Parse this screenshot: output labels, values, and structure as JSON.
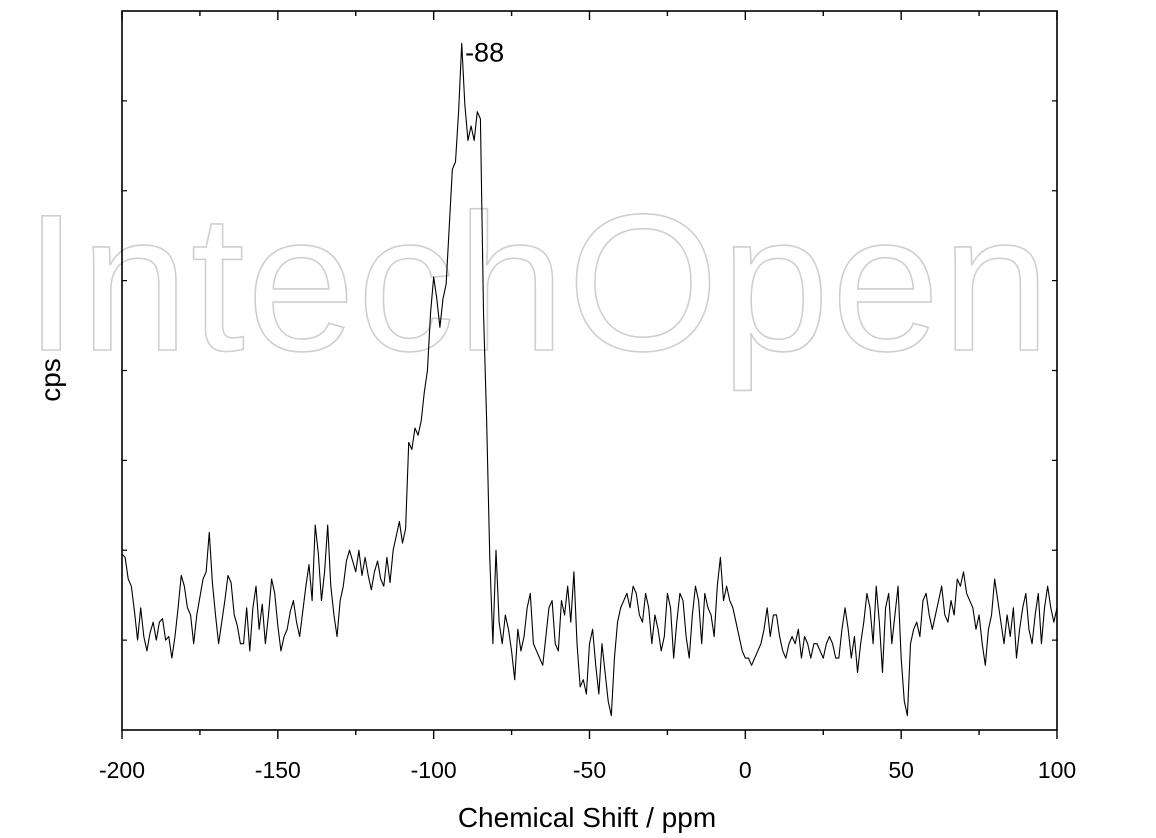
{
  "watermark": "IntechOpen",
  "chart_data": {
    "type": "line",
    "title": "",
    "xlabel": "Chemical Shift / ppm",
    "ylabel": "cps",
    "xlim": [
      -200,
      100
    ],
    "ylim": [
      0,
      1
    ],
    "x_ticks": [
      -200,
      -150,
      -100,
      -50,
      0,
      50,
      100
    ],
    "x_tick_labels": [
      "-200",
      "-150",
      "-100",
      "-50",
      "0",
      "50",
      "100"
    ],
    "grid": false,
    "legend": "none",
    "y_tick_labels_shown": false,
    "annotations": [
      {
        "text": "-88",
        "x": -88,
        "y": 0.955
      }
    ],
    "series": [
      {
        "color": "#000000",
        "points": [
          [
            -200,
            0.245
          ],
          [
            -199,
            0.24
          ],
          [
            -198,
            0.21
          ],
          [
            -197,
            0.2
          ],
          [
            -196,
            0.165
          ],
          [
            -195,
            0.125
          ],
          [
            -194,
            0.17
          ],
          [
            -193,
            0.13
          ],
          [
            -192,
            0.11
          ],
          [
            -191,
            0.135
          ],
          [
            -190,
            0.15
          ],
          [
            -189,
            0.125
          ],
          [
            -188,
            0.15
          ],
          [
            -187,
            0.155
          ],
          [
            -186,
            0.125
          ],
          [
            -185,
            0.13
          ],
          [
            -184,
            0.1
          ],
          [
            -183,
            0.13
          ],
          [
            -182,
            0.17
          ],
          [
            -181,
            0.215
          ],
          [
            -180,
            0.2
          ],
          [
            -179,
            0.17
          ],
          [
            -178,
            0.16
          ],
          [
            -177,
            0.12
          ],
          [
            -176,
            0.16
          ],
          [
            -175,
            0.185
          ],
          [
            -174,
            0.21
          ],
          [
            -173,
            0.22
          ],
          [
            -172,
            0.275
          ],
          [
            -171,
            0.205
          ],
          [
            -170,
            0.16
          ],
          [
            -169,
            0.12
          ],
          [
            -168,
            0.15
          ],
          [
            -167,
            0.18
          ],
          [
            -166,
            0.215
          ],
          [
            -165,
            0.205
          ],
          [
            -164,
            0.16
          ],
          [
            -163,
            0.145
          ],
          [
            -162,
            0.12
          ],
          [
            -161,
            0.12
          ],
          [
            -160,
            0.17
          ],
          [
            -159,
            0.11
          ],
          [
            -158,
            0.17
          ],
          [
            -157,
            0.2
          ],
          [
            -156,
            0.14
          ],
          [
            -155,
            0.175
          ],
          [
            -154,
            0.12
          ],
          [
            -153,
            0.16
          ],
          [
            -152,
            0.21
          ],
          [
            -151,
            0.19
          ],
          [
            -150,
            0.145
          ],
          [
            -149,
            0.11
          ],
          [
            -148,
            0.13
          ],
          [
            -147,
            0.14
          ],
          [
            -146,
            0.165
          ],
          [
            -145,
            0.18
          ],
          [
            -144,
            0.15
          ],
          [
            -143,
            0.13
          ],
          [
            -142,
            0.165
          ],
          [
            -141,
            0.2
          ],
          [
            -140,
            0.23
          ],
          [
            -139,
            0.18
          ],
          [
            -138,
            0.285
          ],
          [
            -137,
            0.245
          ],
          [
            -136,
            0.18
          ],
          [
            -135,
            0.22
          ],
          [
            -134,
            0.285
          ],
          [
            -133,
            0.2
          ],
          [
            -132,
            0.16
          ],
          [
            -131,
            0.13
          ],
          [
            -130,
            0.18
          ],
          [
            -129,
            0.2
          ],
          [
            -128,
            0.235
          ],
          [
            -127,
            0.25
          ],
          [
            -126,
            0.235
          ],
          [
            -125,
            0.22
          ],
          [
            -124,
            0.25
          ],
          [
            -123,
            0.215
          ],
          [
            -122,
            0.24
          ],
          [
            -121,
            0.215
          ],
          [
            -120,
            0.195
          ],
          [
            -119,
            0.22
          ],
          [
            -118,
            0.235
          ],
          [
            -117,
            0.21
          ],
          [
            -116,
            0.2
          ],
          [
            -115,
            0.24
          ],
          [
            -114,
            0.205
          ],
          [
            -113,
            0.25
          ],
          [
            -112,
            0.27
          ],
          [
            -111,
            0.29
          ],
          [
            -110,
            0.26
          ],
          [
            -109,
            0.28
          ],
          [
            -108,
            0.4
          ],
          [
            -107,
            0.39
          ],
          [
            -106,
            0.42
          ],
          [
            -105,
            0.41
          ],
          [
            -104,
            0.43
          ],
          [
            -103,
            0.47
          ],
          [
            -102,
            0.5
          ],
          [
            -101,
            0.58
          ],
          [
            -100,
            0.63
          ],
          [
            -99,
            0.6
          ],
          [
            -98,
            0.56
          ],
          [
            -97,
            0.6
          ],
          [
            -96,
            0.62
          ],
          [
            -95,
            0.7
          ],
          [
            -94,
            0.78
          ],
          [
            -93,
            0.79
          ],
          [
            -92,
            0.86
          ],
          [
            -91,
            0.955
          ],
          [
            -90,
            0.87
          ],
          [
            -89,
            0.82
          ],
          [
            -88,
            0.84
          ],
          [
            -87,
            0.82
          ],
          [
            -86,
            0.86
          ],
          [
            -85,
            0.85
          ],
          [
            -84,
            0.58
          ],
          [
            -83,
            0.43
          ],
          [
            -82,
            0.24
          ],
          [
            -81,
            0.12
          ],
          [
            -80,
            0.25
          ],
          [
            -79,
            0.15
          ],
          [
            -78,
            0.12
          ],
          [
            -77,
            0.16
          ],
          [
            -76,
            0.14
          ],
          [
            -75,
            0.11
          ],
          [
            -74,
            0.07
          ],
          [
            -73,
            0.14
          ],
          [
            -72,
            0.11
          ],
          [
            -71,
            0.13
          ],
          [
            -70,
            0.17
          ],
          [
            -69,
            0.19
          ],
          [
            -68,
            0.12
          ],
          [
            -67,
            0.11
          ],
          [
            -66,
            0.1
          ],
          [
            -65,
            0.09
          ],
          [
            -64,
            0.13
          ],
          [
            -63,
            0.17
          ],
          [
            -62,
            0.18
          ],
          [
            -61,
            0.12
          ],
          [
            -60,
            0.11
          ],
          [
            -59,
            0.18
          ],
          [
            -58,
            0.16
          ],
          [
            -57,
            0.2
          ],
          [
            -56,
            0.15
          ],
          [
            -55,
            0.22
          ],
          [
            -54,
            0.12
          ],
          [
            -53,
            0.06
          ],
          [
            -52,
            0.07
          ],
          [
            -51,
            0.05
          ],
          [
            -50,
            0.12
          ],
          [
            -49,
            0.14
          ],
          [
            -48,
            0.09
          ],
          [
            -47,
            0.05
          ],
          [
            -46,
            0.12
          ],
          [
            -45,
            0.08
          ],
          [
            -44,
            0.04
          ],
          [
            -43,
            0.02
          ],
          [
            -42,
            0.1
          ],
          [
            -41,
            0.15
          ],
          [
            -40,
            0.17
          ],
          [
            -39,
            0.18
          ],
          [
            -38,
            0.19
          ],
          [
            -37,
            0.17
          ],
          [
            -36,
            0.2
          ],
          [
            -35,
            0.19
          ],
          [
            -34,
            0.16
          ],
          [
            -33,
            0.15
          ],
          [
            -32,
            0.19
          ],
          [
            -31,
            0.17
          ],
          [
            -30,
            0.12
          ],
          [
            -29,
            0.16
          ],
          [
            -28,
            0.14
          ],
          [
            -27,
            0.11
          ],
          [
            -26,
            0.13
          ],
          [
            -25,
            0.19
          ],
          [
            -24,
            0.17
          ],
          [
            -23,
            0.1
          ],
          [
            -22,
            0.15
          ],
          [
            -21,
            0.19
          ],
          [
            -20,
            0.18
          ],
          [
            -19,
            0.13
          ],
          [
            -18,
            0.1
          ],
          [
            -17,
            0.16
          ],
          [
            -16,
            0.2
          ],
          [
            -15,
            0.18
          ],
          [
            -14,
            0.12
          ],
          [
            -13,
            0.19
          ],
          [
            -12,
            0.17
          ],
          [
            -11,
            0.16
          ],
          [
            -10,
            0.13
          ],
          [
            -9,
            0.2
          ],
          [
            -8,
            0.24
          ],
          [
            -7,
            0.18
          ],
          [
            -6,
            0.2
          ],
          [
            -5,
            0.18
          ],
          [
            -4,
            0.17
          ],
          [
            -3,
            0.15
          ],
          [
            -2,
            0.13
          ],
          [
            -1,
            0.11
          ],
          [
            0,
            0.1
          ],
          [
            1,
            0.1
          ],
          [
            2,
            0.09
          ],
          [
            3,
            0.1
          ],
          [
            4,
            0.11
          ],
          [
            5,
            0.12
          ],
          [
            6,
            0.14
          ],
          [
            7,
            0.17
          ],
          [
            8,
            0.13
          ],
          [
            9,
            0.16
          ],
          [
            10,
            0.16
          ],
          [
            11,
            0.13
          ],
          [
            12,
            0.11
          ],
          [
            13,
            0.1
          ],
          [
            14,
            0.12
          ],
          [
            15,
            0.13
          ],
          [
            16,
            0.12
          ],
          [
            17,
            0.14
          ],
          [
            18,
            0.1
          ],
          [
            19,
            0.13
          ],
          [
            20,
            0.12
          ],
          [
            21,
            0.1
          ],
          [
            22,
            0.12
          ],
          [
            23,
            0.12
          ],
          [
            24,
            0.11
          ],
          [
            25,
            0.1
          ],
          [
            26,
            0.12
          ],
          [
            27,
            0.13
          ],
          [
            28,
            0.12
          ],
          [
            29,
            0.1
          ],
          [
            30,
            0.1
          ],
          [
            31,
            0.14
          ],
          [
            32,
            0.17
          ],
          [
            33,
            0.14
          ],
          [
            34,
            0.1
          ],
          [
            35,
            0.13
          ],
          [
            36,
            0.08
          ],
          [
            37,
            0.12
          ],
          [
            38,
            0.15
          ],
          [
            39,
            0.19
          ],
          [
            40,
            0.17
          ],
          [
            41,
            0.12
          ],
          [
            42,
            0.2
          ],
          [
            43,
            0.15
          ],
          [
            44,
            0.08
          ],
          [
            45,
            0.17
          ],
          [
            46,
            0.19
          ],
          [
            47,
            0.12
          ],
          [
            48,
            0.16
          ],
          [
            49,
            0.2
          ],
          [
            50,
            0.1
          ],
          [
            51,
            0.04
          ],
          [
            52,
            0.02
          ],
          [
            53,
            0.12
          ],
          [
            54,
            0.14
          ],
          [
            55,
            0.15
          ],
          [
            56,
            0.13
          ],
          [
            57,
            0.18
          ],
          [
            58,
            0.19
          ],
          [
            59,
            0.16
          ],
          [
            60,
            0.14
          ],
          [
            61,
            0.16
          ],
          [
            62,
            0.18
          ],
          [
            63,
            0.2
          ],
          [
            64,
            0.16
          ],
          [
            65,
            0.15
          ],
          [
            66,
            0.18
          ],
          [
            67,
            0.16
          ],
          [
            68,
            0.21
          ],
          [
            69,
            0.2
          ],
          [
            70,
            0.22
          ],
          [
            71,
            0.19
          ],
          [
            72,
            0.18
          ],
          [
            73,
            0.17
          ],
          [
            74,
            0.14
          ],
          [
            75,
            0.16
          ],
          [
            76,
            0.12
          ],
          [
            77,
            0.09
          ],
          [
            78,
            0.14
          ],
          [
            79,
            0.16
          ],
          [
            80,
            0.21
          ],
          [
            81,
            0.18
          ],
          [
            82,
            0.15
          ],
          [
            83,
            0.12
          ],
          [
            84,
            0.16
          ],
          [
            85,
            0.13
          ],
          [
            86,
            0.17
          ],
          [
            87,
            0.1
          ],
          [
            88,
            0.14
          ],
          [
            89,
            0.17
          ],
          [
            90,
            0.19
          ],
          [
            91,
            0.14
          ],
          [
            92,
            0.12
          ],
          [
            93,
            0.16
          ],
          [
            94,
            0.19
          ],
          [
            95,
            0.12
          ],
          [
            96,
            0.17
          ],
          [
            97,
            0.2
          ],
          [
            98,
            0.17
          ],
          [
            99,
            0.15
          ],
          [
            100,
            0.17
          ]
        ]
      }
    ]
  }
}
